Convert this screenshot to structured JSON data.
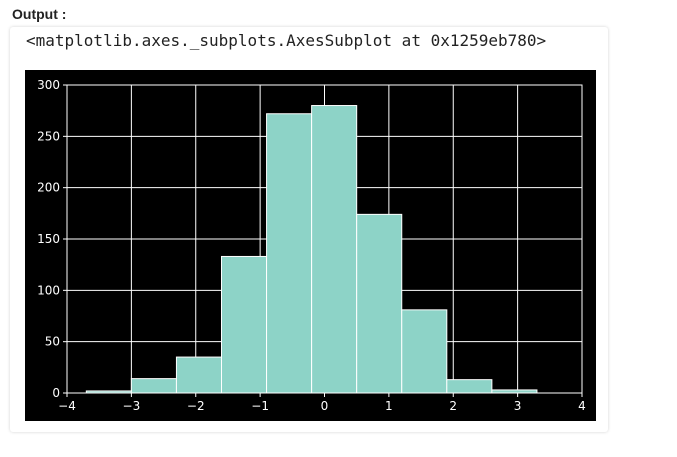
{
  "header": {
    "label": "Output :"
  },
  "cell": {
    "repr_text": "<matplotlib.axes._subplots.AxesSubplot at 0x1259eb780>"
  },
  "chart_data": {
    "type": "histogram",
    "bin_edges": [
      -3.7,
      -3.0,
      -2.3,
      -1.6,
      -0.9,
      -0.2,
      0.5,
      1.2,
      1.9,
      2.6,
      3.3
    ],
    "values": [
      2,
      14,
      35,
      133,
      272,
      280,
      174,
      81,
      13,
      3
    ],
    "xlim": [
      -4,
      4
    ],
    "ylim": [
      0,
      300
    ],
    "xticks": [
      -4,
      -3,
      -2,
      -1,
      0,
      1,
      2,
      3,
      4
    ],
    "yticks": [
      0,
      50,
      100,
      150,
      200,
      250,
      300
    ],
    "grid": true,
    "bar_color": "#8dd3c7",
    "edge_color": "#ffffff",
    "background": "#000000"
  }
}
